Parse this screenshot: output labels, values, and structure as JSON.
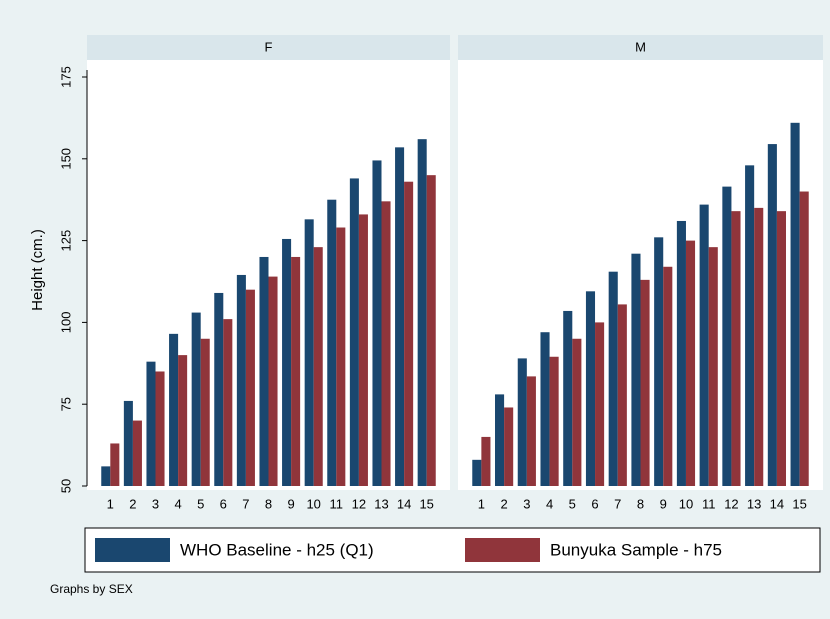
{
  "chart_data": [
    {
      "type": "bar",
      "title": "F",
      "ylabel": "Height (cm.)",
      "note": "Graphs by SEX",
      "categories": [
        "1",
        "2",
        "3",
        "4",
        "5",
        "6",
        "7",
        "8",
        "9",
        "10",
        "11",
        "12",
        "13",
        "14",
        "15"
      ],
      "series": [
        {
          "name": "WHO Baseline - h25 (Q1)",
          "color": "#1a476f",
          "values": [
            56,
            76,
            88,
            96.5,
            103,
            109,
            114.5,
            120,
            125.5,
            131.5,
            137.5,
            144,
            149.5,
            153.5,
            156
          ]
        },
        {
          "name": "Bunyuka Sample - h75",
          "color": "#90353b",
          "values": [
            63,
            70,
            85,
            90,
            95,
            101,
            110,
            114,
            120,
            123,
            129,
            133,
            137,
            143,
            145
          ]
        }
      ],
      "ylim": [
        50,
        175
      ],
      "yticks": [
        50,
        75,
        100,
        125,
        150,
        175
      ]
    },
    {
      "type": "bar",
      "title": "M",
      "categories": [
        "1",
        "2",
        "3",
        "4",
        "5",
        "6",
        "7",
        "8",
        "9",
        "10",
        "11",
        "12",
        "13",
        "14",
        "15"
      ],
      "series": [
        {
          "name": "WHO Baseline - h25 (Q1)",
          "color": "#1a476f",
          "values": [
            58,
            78,
            89,
            97,
            103.5,
            109.5,
            115.5,
            121,
            126,
            131,
            136,
            141.5,
            148,
            154.5,
            161
          ]
        },
        {
          "name": "Bunyuka Sample - h75",
          "color": "#90353b",
          "values": [
            65,
            74,
            83.5,
            89.5,
            95,
            100,
            105.5,
            113,
            117,
            125,
            123,
            134,
            135,
            134,
            140
          ]
        }
      ],
      "ylim": [
        50,
        175
      ]
    }
  ]
}
